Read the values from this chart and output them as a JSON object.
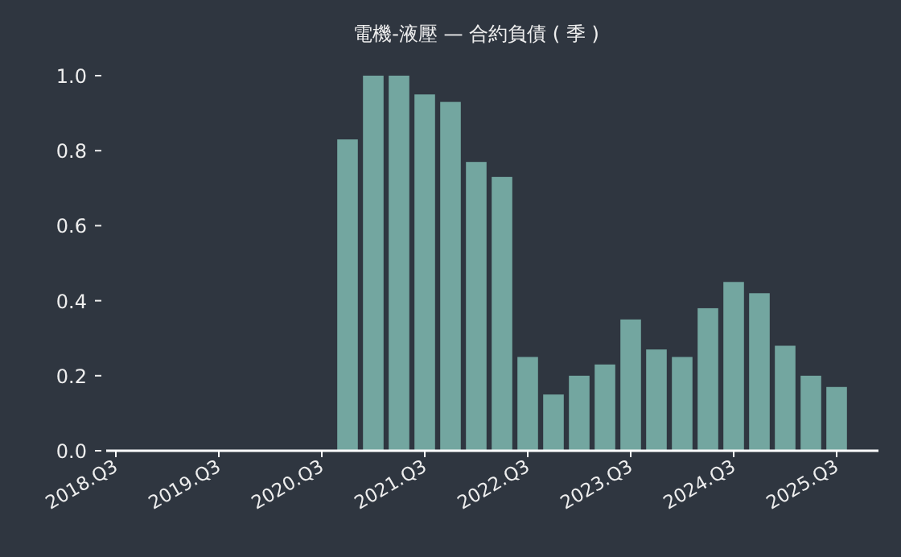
{
  "chart_data": {
    "type": "bar",
    "title": "電機-液壓 — 合約負債 ( 季 )",
    "categories": [
      "2018.Q3",
      null,
      null,
      null,
      "2019.Q3",
      null,
      null,
      null,
      "2020.Q3",
      null,
      null,
      null,
      "2021.Q3",
      null,
      null,
      null,
      "2022.Q3",
      null,
      null,
      null,
      "2023.Q3",
      null,
      null,
      null,
      "2024.Q3",
      null,
      null,
      null,
      "2025.Q3"
    ],
    "values": [
      null,
      null,
      null,
      null,
      null,
      null,
      null,
      null,
      null,
      0.83,
      1.0,
      1.0,
      0.95,
      0.93,
      0.77,
      0.73,
      0.25,
      0.15,
      0.2,
      0.23,
      0.35,
      0.27,
      0.25,
      0.38,
      0.45,
      0.42,
      0.28,
      0.2,
      0.17
    ],
    "color": "#73a6a0",
    "ylim": [
      0,
      1
    ],
    "yticks": [
      {
        "value": 0,
        "label": "0.0"
      },
      {
        "value": 0.2,
        "label": "0.2"
      },
      {
        "value": 0.4,
        "label": "0.4"
      },
      {
        "value": 0.6,
        "label": "0.6"
      },
      {
        "value": 0.8,
        "label": "0.8"
      },
      {
        "value": 1,
        "label": "1.0"
      }
    ]
  }
}
